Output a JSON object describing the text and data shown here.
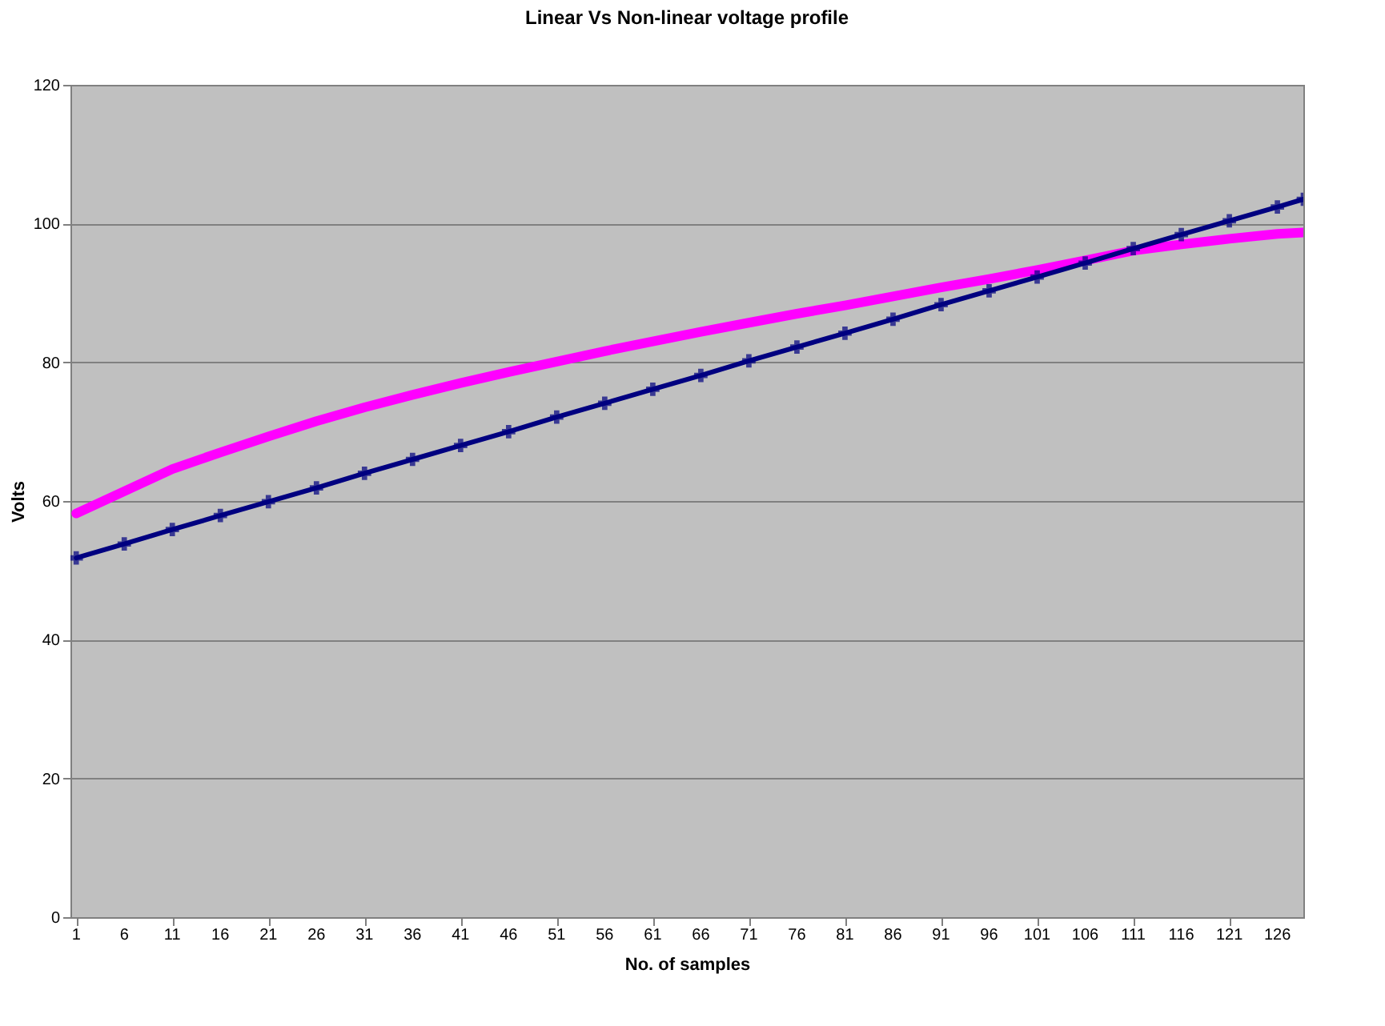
{
  "chart_data": {
    "type": "line",
    "title": "Linear Vs Non-linear voltage profile",
    "xlabel": "No. of samples",
    "ylabel": "Volts",
    "xlim": [
      0.4,
      128.7
    ],
    "xticks": [
      1,
      6,
      11,
      16,
      21,
      26,
      31,
      36,
      41,
      46,
      51,
      56,
      61,
      66,
      71,
      76,
      81,
      86,
      91,
      96,
      101,
      106,
      111,
      116,
      121,
      126
    ],
    "ylim": [
      0,
      120
    ],
    "yticks": [
      0,
      20,
      40,
      60,
      80,
      100,
      120
    ],
    "grid": "y",
    "line_style": "solid",
    "x": [
      1,
      6,
      11,
      16,
      21,
      26,
      31,
      36,
      41,
      46,
      51,
      56,
      61,
      66,
      71,
      76,
      81,
      86,
      91,
      96,
      101,
      106,
      111,
      116,
      121,
      126,
      128.7
    ],
    "series": [
      {
        "color": "#000080",
        "marker": "cross",
        "values": [
          51.8,
          53.8,
          55.9,
          57.9,
          59.9,
          61.9,
          64.0,
          66.0,
          68.0,
          70.0,
          72.1,
          74.1,
          76.1,
          78.1,
          80.2,
          82.2,
          84.2,
          86.2,
          88.3,
          90.3,
          92.3,
          94.3,
          96.4,
          98.4,
          100.4,
          102.4,
          103.5
        ]
      },
      {
        "color": "#ff00ff",
        "marker": "none",
        "values": [
          58.2,
          61.4,
          64.6,
          67.0,
          69.3,
          71.5,
          73.5,
          75.3,
          77.0,
          78.6,
          80.1,
          81.6,
          83.0,
          84.4,
          85.7,
          87.0,
          88.2,
          89.5,
          90.8,
          92.0,
          93.3,
          94.7,
          96.1,
          97.0,
          97.8,
          98.5,
          98.7
        ]
      }
    ]
  }
}
